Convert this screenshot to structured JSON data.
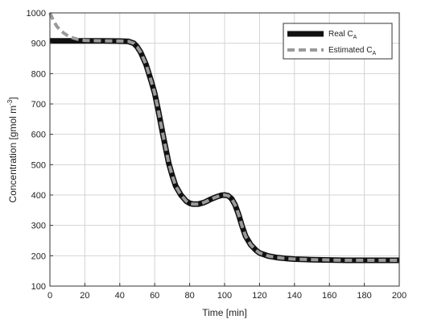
{
  "chart_data": {
    "type": "line",
    "title": "",
    "xlabel": "Time [min]",
    "ylabel_main": "Concentration [gmol m",
    "ylabel_sup": "-3",
    "ylabel_end": "]",
    "xlim": [
      0,
      200
    ],
    "ylim": [
      100,
      1000
    ],
    "xticks": [
      0,
      20,
      40,
      60,
      80,
      100,
      120,
      140,
      160,
      180,
      200
    ],
    "yticks": [
      100,
      200,
      300,
      400,
      500,
      600,
      700,
      800,
      900,
      1000
    ],
    "grid": true,
    "legend_position": "top-right",
    "series": [
      {
        "name_main": "Real C",
        "name_sub": "A",
        "style": "solid",
        "color": "#111111",
        "x": [
          0,
          10,
          20,
          30,
          40,
          45,
          48,
          50,
          52,
          55,
          58,
          60,
          62,
          65,
          68,
          70,
          72,
          75,
          78,
          80,
          82,
          85,
          88,
          90,
          92,
          95,
          98,
          100,
          102,
          104,
          106,
          108,
          110,
          112,
          115,
          118,
          120,
          125,
          130,
          135,
          140,
          150,
          160,
          170,
          180,
          190,
          200
        ],
        "y": [
          908,
          908,
          908,
          908,
          907,
          906,
          900,
          888,
          870,
          830,
          775,
          735,
          680,
          590,
          505,
          465,
          430,
          400,
          380,
          373,
          370,
          370,
          375,
          380,
          386,
          393,
          399,
          400,
          398,
          388,
          368,
          336,
          298,
          265,
          236,
          218,
          209,
          199,
          194,
          191,
          189,
          187,
          186,
          185,
          185,
          185,
          185
        ]
      },
      {
        "name_main": "Estimated C",
        "name_sub": "A",
        "style": "dashed",
        "color": "#9a9a9a",
        "x": [
          0,
          2,
          4,
          6,
          8,
          10,
          12,
          14,
          16,
          18,
          20,
          30,
          40,
          45,
          48,
          50,
          52,
          55,
          58,
          60,
          62,
          65,
          68,
          70,
          72,
          75,
          78,
          80,
          82,
          85,
          88,
          90,
          92,
          95,
          98,
          100,
          102,
          104,
          106,
          108,
          110,
          112,
          115,
          118,
          120,
          125,
          130,
          135,
          140,
          150,
          160,
          170,
          180,
          190,
          200
        ],
        "y": [
          1000,
          975,
          955,
          943,
          933,
          926,
          920,
          916,
          913,
          911,
          909,
          908,
          907,
          906,
          900,
          888,
          870,
          830,
          775,
          735,
          680,
          590,
          505,
          465,
          430,
          400,
          380,
          373,
          370,
          370,
          375,
          380,
          386,
          393,
          399,
          400,
          398,
          388,
          368,
          336,
          298,
          265,
          236,
          218,
          209,
          199,
          194,
          191,
          189,
          187,
          186,
          185,
          185,
          185,
          185
        ]
      }
    ]
  }
}
